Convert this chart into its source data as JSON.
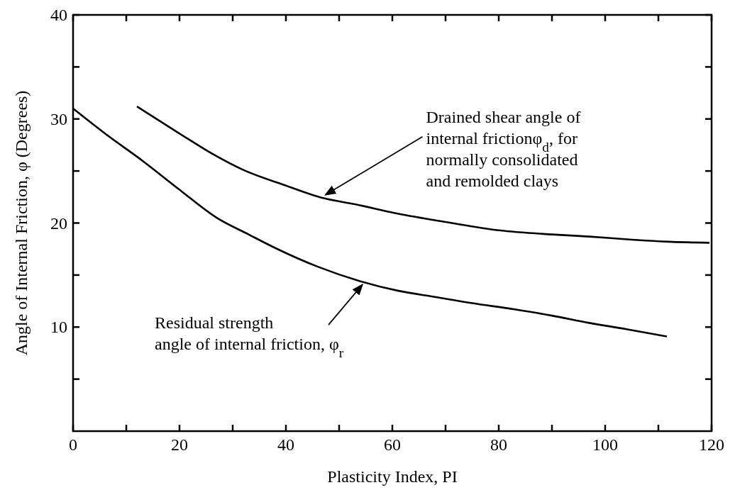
{
  "chart_data": {
    "type": "line",
    "xlabel": "Plasticity Index, PI",
    "ylabel": "Angle of Internal Friction, φ (Degrees)",
    "xlim": [
      0,
      120
    ],
    "ylim": [
      0,
      40
    ],
    "xticks": [
      0,
      {
        "value": 10,
        "label": null
      },
      20,
      {
        "value": 30,
        "label": null
      },
      40,
      {
        "value": 50,
        "label": null
      },
      60,
      {
        "value": 70,
        "label": null
      },
      80,
      {
        "value": 90,
        "label": null
      },
      100,
      {
        "value": 110,
        "label": null
      },
      120
    ],
    "yticks": [
      {
        "value": 5,
        "label": null
      },
      10,
      {
        "value": 15,
        "label": null
      },
      20,
      {
        "value": 25,
        "label": null
      },
      30,
      {
        "value": 35,
        "label": null
      },
      40
    ],
    "grid": false,
    "marker": "none",
    "line_style": "solid",
    "series": [
      {
        "color": "#000000",
        "x": [
          12,
          20,
          26,
          32,
          40,
          47,
          53,
          61,
          70,
          80,
          90,
          97,
          105,
          112,
          119.6
        ],
        "values": [
          31.2,
          28.6,
          26.7,
          25.1,
          23.6,
          22.4,
          21.8,
          20.9,
          20.1,
          19.3,
          18.9,
          18.7,
          18.4,
          18.2,
          18.1
        ]
      },
      {
        "color": "#000000",
        "x": [
          0,
          6,
          13,
          20,
          27,
          33,
          38,
          46,
          54,
          61,
          68,
          75,
          83,
          90,
          97,
          104,
          111.6
        ],
        "values": [
          31.0,
          28.6,
          26.0,
          23.2,
          20.5,
          18.9,
          17.6,
          15.8,
          14.4,
          13.5,
          12.9,
          12.3,
          11.7,
          11.1,
          10.4,
          9.8,
          9.1
        ]
      }
    ],
    "annotations": [
      {
        "text": "Drained shear angle of\ninternal frictionφ$_{d}$, for\nnormally consolidated\nand remolded clays",
        "x": 47,
        "y": 22.5
      },
      {
        "text": "Residual strength\nangle of internal friction, φ$_{r}$",
        "x": 54,
        "y": 14.3
      }
    ]
  }
}
